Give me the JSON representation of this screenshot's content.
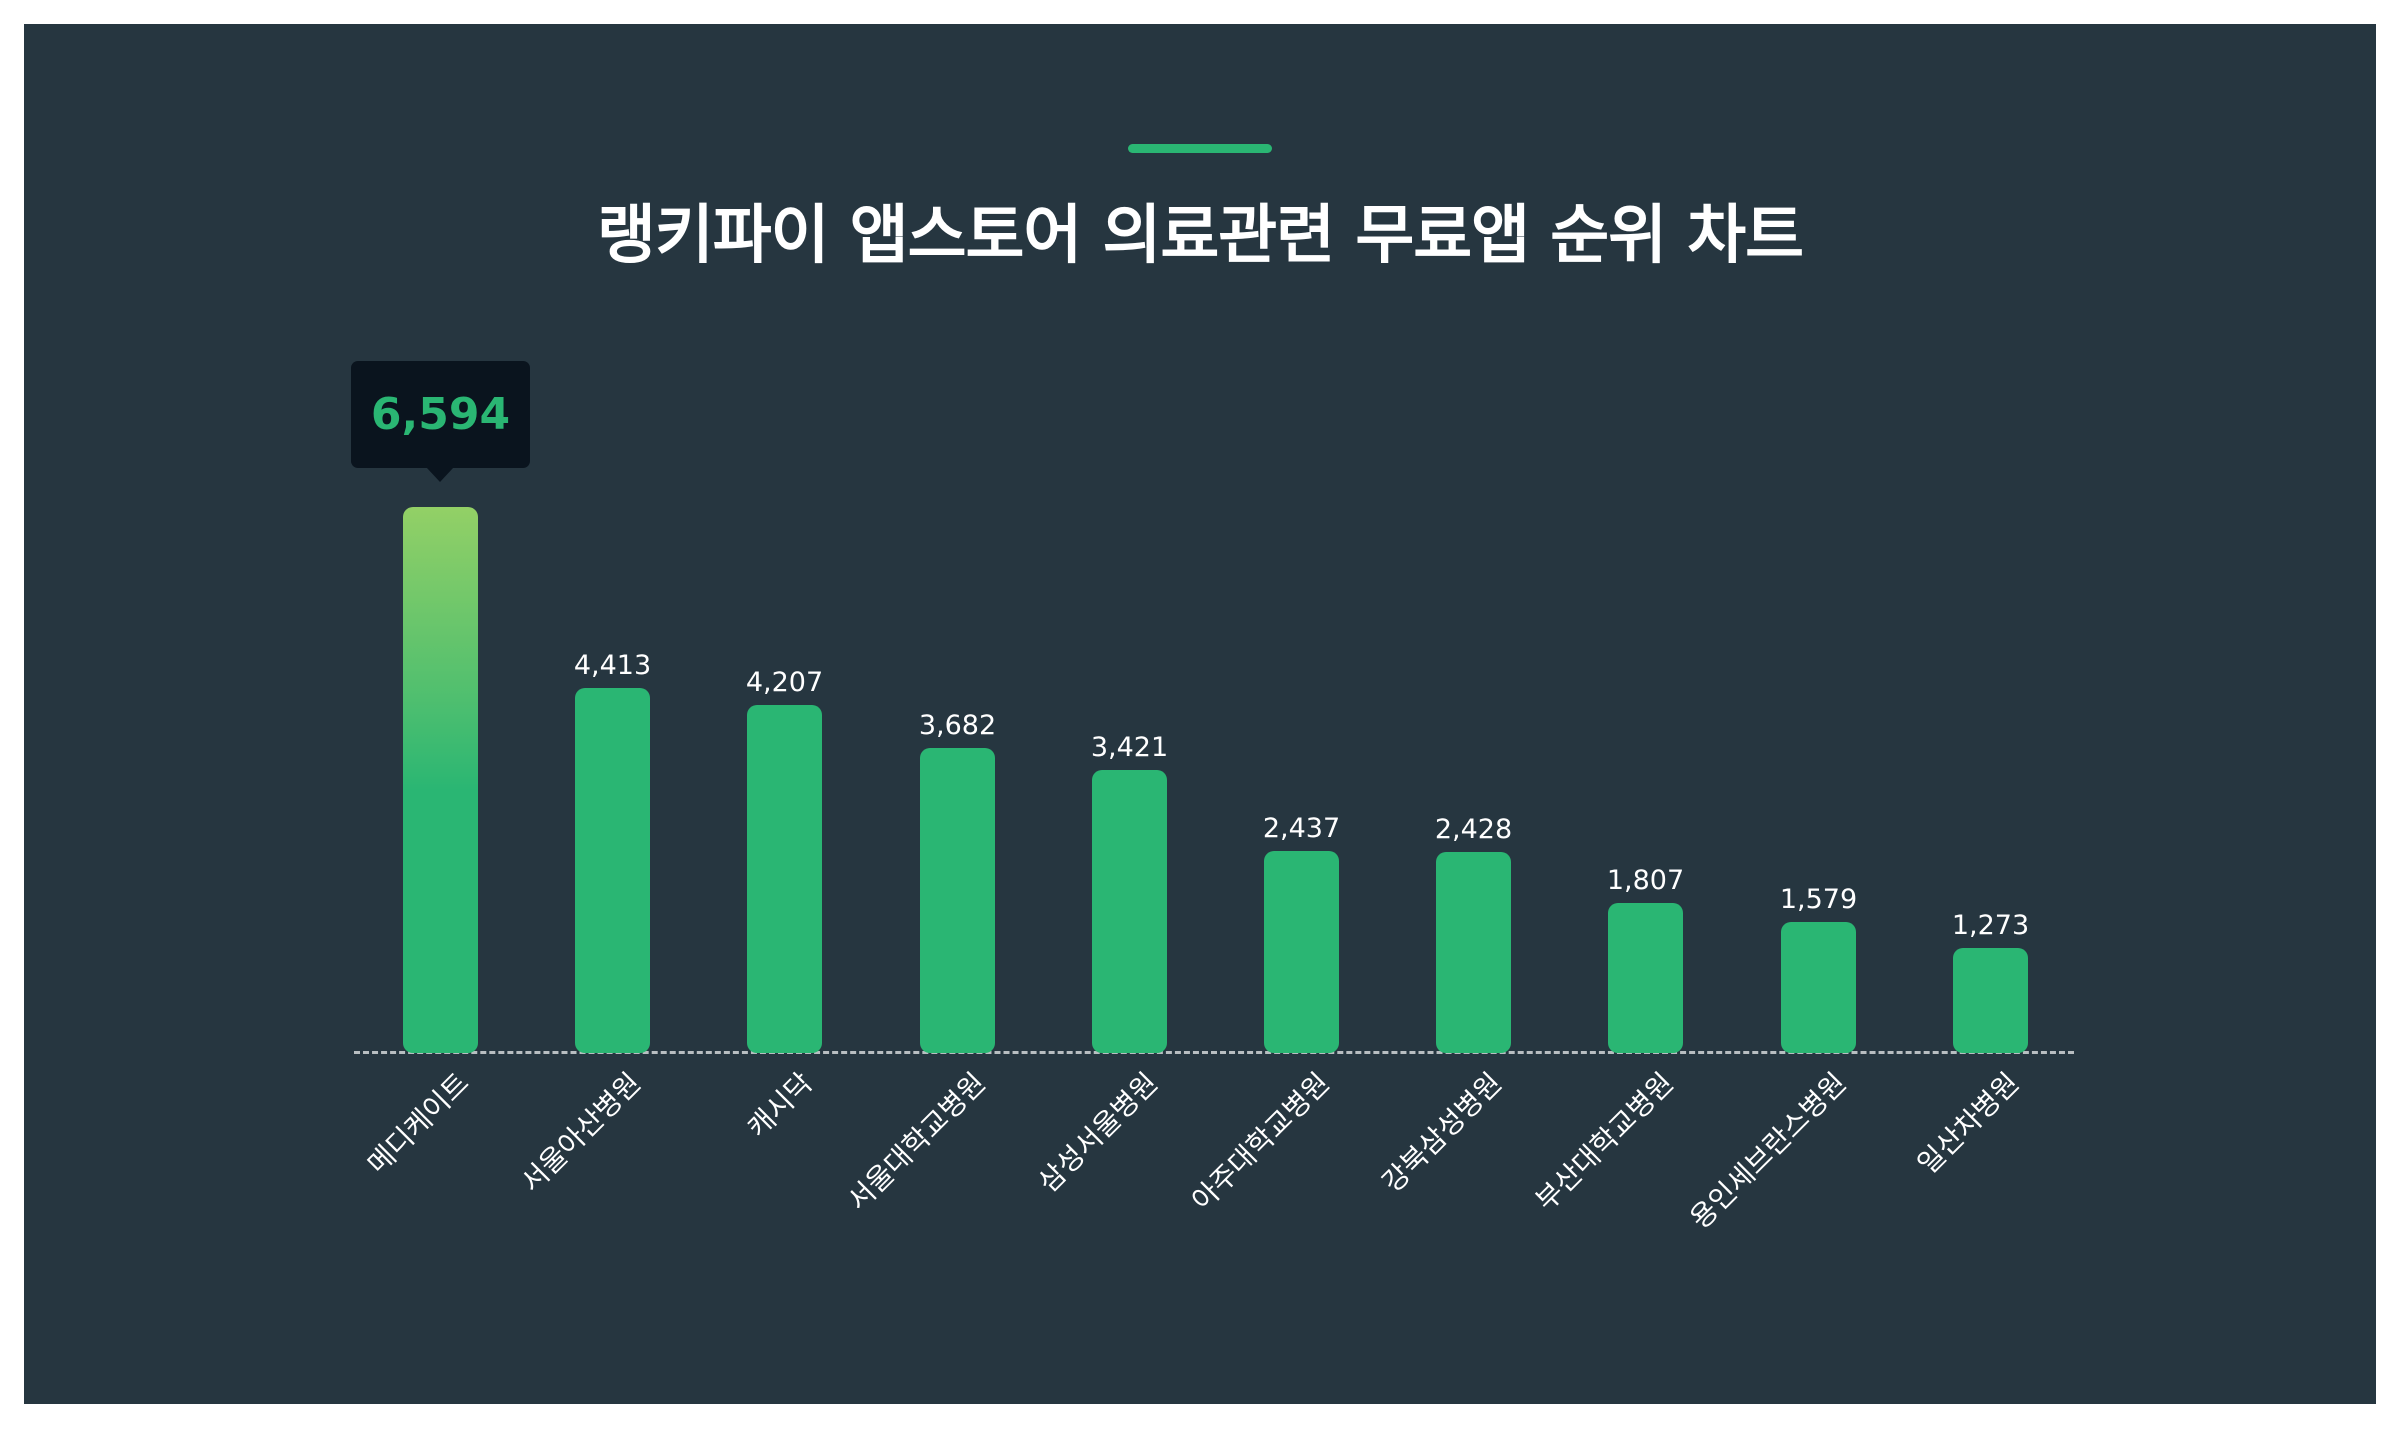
{
  "header": {
    "title": "랭키파이 앱스토어 의료관련 무료앱 순위 차트",
    "accent_color": "#2ab673"
  },
  "tooltip": {
    "value": "6,594",
    "category": "메디케이트"
  },
  "colors": {
    "background": "#263640",
    "bar": "#2ab673",
    "bar_highlight_top": "#93d066",
    "tooltip_bg": "#0a141e",
    "baseline": "#c8cdd0"
  },
  "chart_data": {
    "type": "bar",
    "title": "랭키파이 앱스토어 의료관련 무료앱 순위 차트",
    "xlabel": "",
    "ylabel": "",
    "categories": [
      "메디케이트",
      "서울아산병원",
      "캐시닥",
      "서울대학교병원",
      "삼성서울병원",
      "아주대학교병원",
      "강북삼성병원",
      "부산대학교병원",
      "용인세브란스병원",
      "일산차병원"
    ],
    "values": [
      6594,
      4413,
      4207,
      3682,
      3421,
      2437,
      2428,
      1807,
      1579,
      1273
    ],
    "value_labels": [
      "6,594",
      "4,413",
      "4,207",
      "3,682",
      "3,421",
      "2,437",
      "2,428",
      "1,807",
      "1,579",
      "1,273"
    ],
    "ylim": [
      0,
      6594
    ],
    "grid": false,
    "legend": "none",
    "highlighted_index": 0,
    "annotations": [
      "Tooltip on first bar: 6,594"
    ]
  }
}
